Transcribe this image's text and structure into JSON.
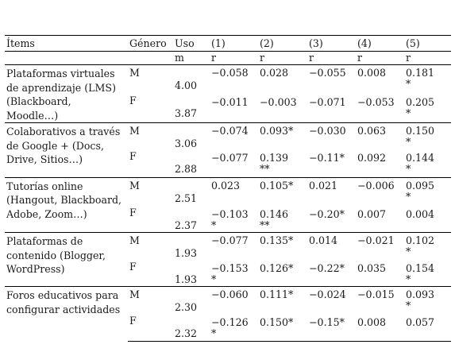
{
  "header": {
    "items": "Ítems",
    "genero": "Género",
    "uso": "Uso",
    "uso_sub": "m",
    "cols": [
      "(1)",
      "(2)",
      "(3)",
      "(4)",
      "(5)"
    ],
    "r": "r"
  },
  "groups": [
    {
      "item": "Plataformas virtuales de aprendizaje (LMS) (Blackboard, Moodle…)",
      "rows": [
        {
          "g": "M",
          "uso": "4.00",
          "v": [
            "−0.058",
            "0.028",
            "−0.055",
            "0.008",
            "0.181"
          ],
          "s": [
            "",
            "",
            "",
            "",
            "*"
          ]
        },
        {
          "g": "F",
          "uso": "3.87",
          "v": [
            "−0.011",
            "−0.003",
            "−0.071",
            "−0.053",
            "0.205"
          ],
          "s": [
            "",
            "",
            "",
            "",
            "*"
          ]
        }
      ]
    },
    {
      "item": "Colaborativos a través de Google + (Docs, Drive, Sitios…)",
      "rows": [
        {
          "g": "M",
          "uso": "3.06",
          "v": [
            "−0.074",
            "0.093*",
            "−0.030",
            "0.063",
            "0.150"
          ],
          "s": [
            "",
            "",
            "",
            "",
            "*"
          ]
        },
        {
          "g": "F",
          "uso": "2.88",
          "v": [
            "−0.077",
            "0.139",
            "−0.11*",
            "0.092",
            "0.144"
          ],
          "s": [
            "",
            "**",
            "",
            "",
            "*"
          ]
        }
      ]
    },
    {
      "item": "Tutorías online (Hangout, Blackboard, Adobe, Zoom…)",
      "rows": [
        {
          "g": "M",
          "uso": "2.51",
          "v": [
            "0.023",
            "0.105*",
            "0.021",
            "−0.006",
            "0.095"
          ],
          "s": [
            "",
            "",
            "",
            "",
            "*"
          ]
        },
        {
          "g": "F",
          "uso": "2.37",
          "v": [
            "−0.103",
            "0.146",
            "−0.20*",
            "0.007",
            "0.004"
          ],
          "s": [
            "*",
            "**",
            "",
            "",
            ""
          ]
        }
      ]
    },
    {
      "item": "Plataformas de contenido (Blogger, WordPress)",
      "rows": [
        {
          "g": "M",
          "uso": "1.93",
          "v": [
            "−0.077",
            "0.135*",
            "0.014",
            "−0.021",
            "0.102"
          ],
          "s": [
            "",
            "",
            "",
            "",
            "*"
          ]
        },
        {
          "g": "F",
          "uso": "1.93",
          "v": [
            "−0.153",
            "0.126*",
            "−0.22*",
            "0.035",
            "0.154"
          ],
          "s": [
            "*",
            "",
            "",
            "",
            "*"
          ]
        }
      ]
    },
    {
      "item": "Foros educativos para configurar actividades",
      "rows": [
        {
          "g": "M",
          "uso": "2.30",
          "v": [
            "−0.060",
            "0.111*",
            "−0.024",
            "−0.015",
            "0.093"
          ],
          "s": [
            "",
            "",
            "",
            "",
            "*"
          ]
        },
        {
          "g": "F",
          "uso": "2.32",
          "v": [
            "−0.126",
            "0.150*",
            "−0.15*",
            "0.008",
            "0.057"
          ],
          "s": [
            "*",
            "",
            "",
            "",
            ""
          ]
        }
      ]
    }
  ]
}
